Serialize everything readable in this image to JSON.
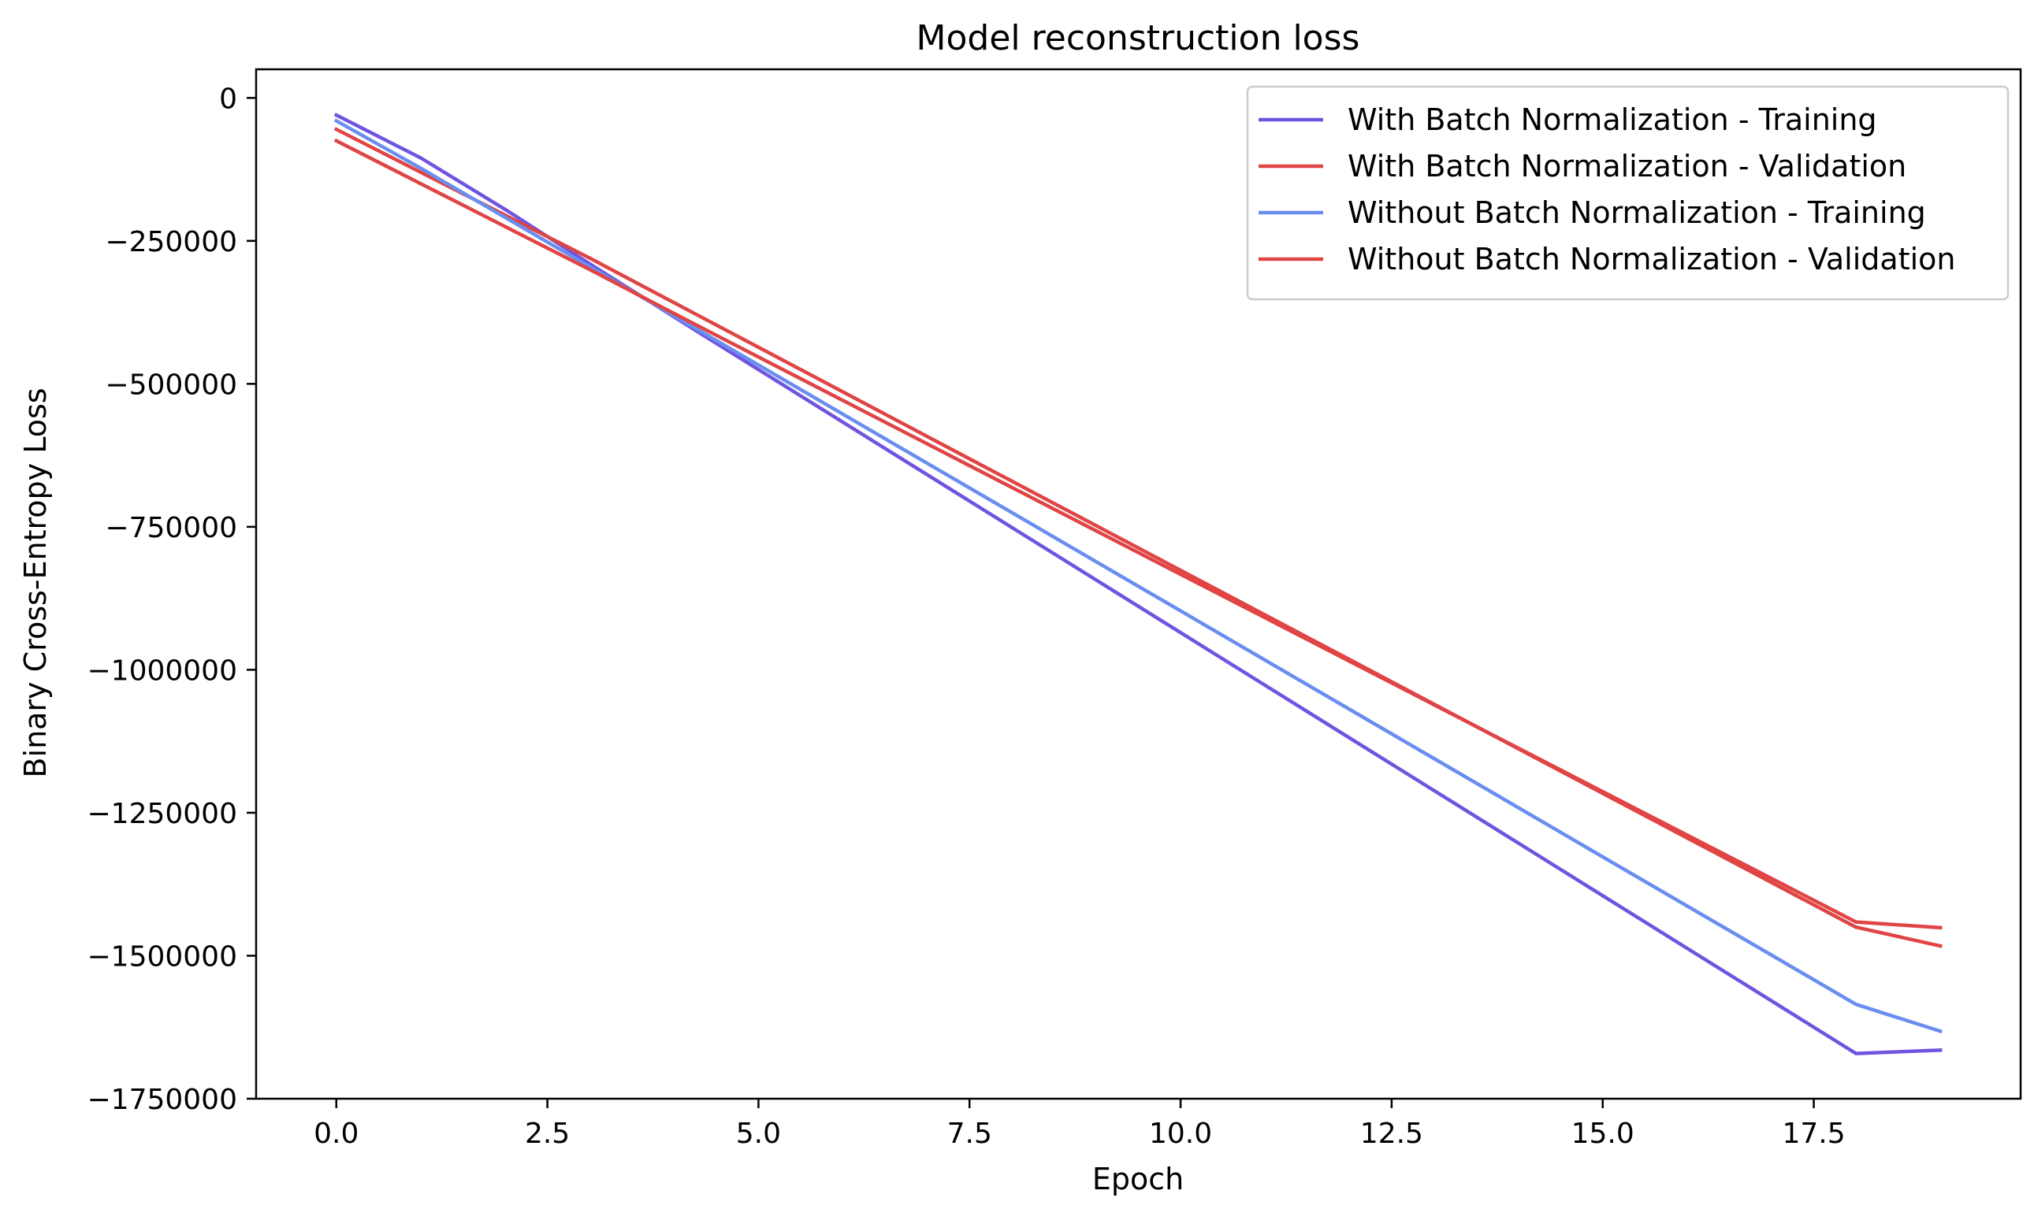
{
  "chart_data": {
    "type": "line",
    "title": "Model reconstruction loss",
    "xlabel": "Epoch",
    "ylabel": "Binary Cross-Entropy Loss",
    "xlim": [
      -0.95,
      19.95
    ],
    "ylim": [
      -1750000,
      50000
    ],
    "x_ticks": [
      0.0,
      2.5,
      5.0,
      7.5,
      10.0,
      12.5,
      15.0,
      17.5
    ],
    "x_tick_labels": [
      "0.0",
      "2.5",
      "5.0",
      "7.5",
      "10.0",
      "12.5",
      "15.0",
      "17.5"
    ],
    "y_ticks": [
      0,
      -250000,
      -500000,
      -750000,
      -1000000,
      -1250000,
      -1500000,
      -1750000
    ],
    "y_tick_labels": [
      "0",
      "−250000",
      "−500000",
      "−750000",
      "−1000000",
      "−1250000",
      "−1500000",
      "−1750000"
    ],
    "grid": false,
    "legend_position": "top-right",
    "x": [
      0,
      1,
      2,
      3,
      4,
      5,
      6,
      7,
      8,
      9,
      10,
      11,
      12,
      13,
      14,
      15,
      16,
      17,
      18,
      19
    ],
    "series": [
      {
        "name": "With Batch Normalization - Training",
        "color": "#7054e0",
        "values": [
          -30000,
          -105000,
          -195000,
          -290000,
          -383000,
          -475000,
          -567000,
          -659000,
          -751000,
          -843000,
          -935000,
          -1027000,
          -1119000,
          -1211000,
          -1303000,
          -1395000,
          -1487000,
          -1579000,
          -1671000,
          -1665000
        ]
      },
      {
        "name": "With Batch Normalization - Validation",
        "color": "#e04444",
        "values": [
          -55000,
          -130000,
          -205000,
          -280000,
          -358000,
          -436000,
          -514000,
          -592000,
          -670000,
          -748000,
          -826000,
          -904000,
          -982000,
          -1060000,
          -1138000,
          -1216000,
          -1294000,
          -1372000,
          -1450000,
          -1483000
        ]
      },
      {
        "name": "Without Batch Normalization - Training",
        "color": "#6a8ef0",
        "values": [
          -40000,
          -123000,
          -209000,
          -295000,
          -381000,
          -467000,
          -553000,
          -639000,
          -725000,
          -811000,
          -897000,
          -983000,
          -1069000,
          -1155000,
          -1241000,
          -1327000,
          -1413000,
          -1499000,
          -1585000,
          -1632000
        ]
      },
      {
        "name": "Without Batch Normalization - Validation",
        "color": "#e04444",
        "values": [
          -75000,
          -150000,
          -225000,
          -300000,
          -377000,
          -453000,
          -529000,
          -605000,
          -681000,
          -757000,
          -833000,
          -909000,
          -985000,
          -1061000,
          -1137000,
          -1213000,
          -1289000,
          -1365000,
          -1441000,
          -1451000
        ]
      }
    ]
  }
}
